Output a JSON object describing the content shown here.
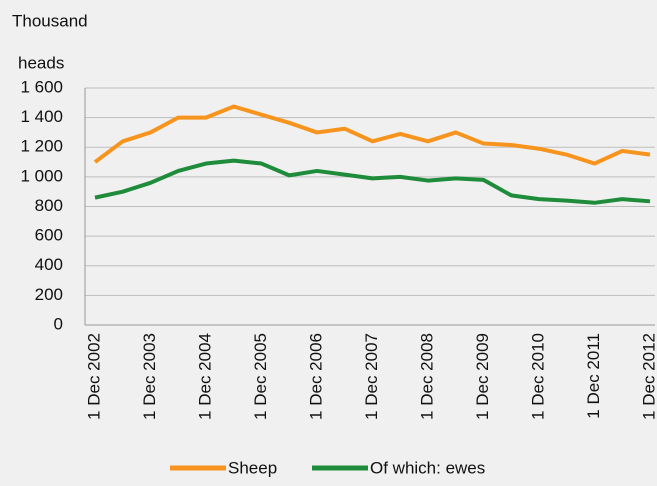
{
  "chart_data": {
    "type": "line",
    "ylabel_lines": [
      "Thousand",
      "heads"
    ],
    "categories": [
      "1 Dec 2002",
      null,
      "1 Dec 2003",
      null,
      "1 Dec 2004",
      null,
      "1 Dec 2005",
      null,
      "1 Dec 2006",
      null,
      "1 Dec 2007",
      null,
      "1 Dec 2008",
      null,
      "1 Dec 2009",
      null,
      "1 Dec 2010",
      null,
      "1 Dec 2011",
      null,
      "1 Dec 2012"
    ],
    "series": [
      {
        "name": "Sheep",
        "color": "#f7941d",
        "values": [
          1100,
          1240,
          1300,
          1400,
          1400,
          1475,
          1420,
          1365,
          1300,
          1325,
          1240,
          1290,
          1240,
          1300,
          1225,
          1215,
          1190,
          1150,
          1090,
          1175,
          1150
        ]
      },
      {
        "name": "Of which: ewes",
        "color": "#1e8c3a",
        "values": [
          860,
          900,
          960,
          1040,
          1090,
          1110,
          1090,
          1010,
          1040,
          1015,
          990,
          1000,
          975,
          990,
          980,
          875,
          850,
          840,
          825,
          850,
          835
        ]
      }
    ],
    "ylim": [
      0,
      1600
    ],
    "yticks": [
      0,
      200,
      400,
      600,
      800,
      {
        "value": 1000,
        "label": "1 000"
      },
      {
        "value": 1200,
        "label": "1 200"
      },
      {
        "value": 1400,
        "label": "1 400"
      },
      {
        "value": 1600,
        "label": "1 600"
      }
    ],
    "grid": true,
    "legend": "bottom"
  }
}
